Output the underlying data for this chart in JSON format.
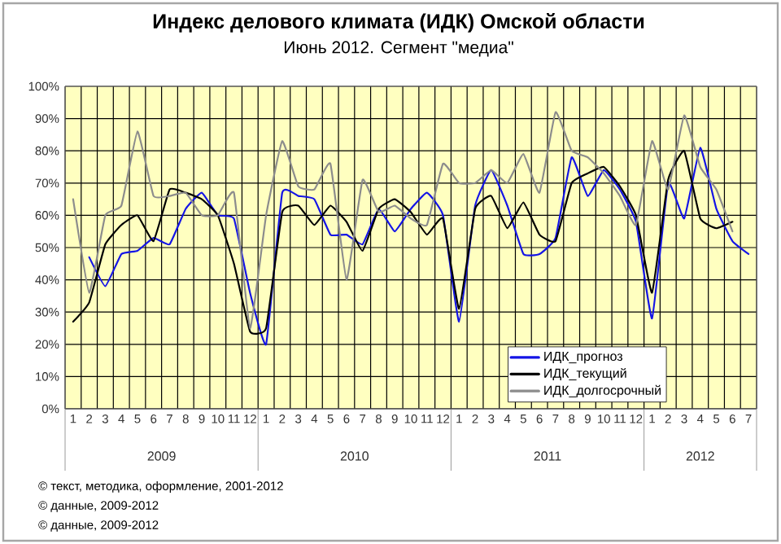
{
  "chart_data": {
    "type": "line",
    "title": "Индекс делового климата (ИДК) Омской области",
    "subtitle": "Июнь 2012. Сегмент \"медиа\"",
    "categories": [
      "1",
      "2",
      "3",
      "4",
      "5",
      "6",
      "7",
      "8",
      "9",
      "10",
      "11",
      "12",
      "1",
      "2",
      "3",
      "4",
      "5",
      "6",
      "7",
      "8",
      "9",
      "10",
      "11",
      "12",
      "1",
      "2",
      "3",
      "4",
      "5",
      "6",
      "7",
      "8",
      "9",
      "10",
      "11",
      "12",
      "1",
      "2",
      "3",
      "4",
      "5",
      "6",
      "7"
    ],
    "series": [
      {
        "name": "ИДК_прогноз",
        "color": "#1414e6",
        "values": [
          null,
          47,
          38,
          48,
          49,
          53,
          51,
          62,
          67,
          60,
          59,
          36,
          20,
          67,
          66,
          65,
          54,
          54,
          51,
          62,
          55,
          62,
          67,
          60,
          27,
          63,
          74,
          63,
          48,
          48,
          53,
          78,
          66,
          74,
          68,
          58,
          28,
          70,
          59,
          81,
          62,
          52,
          48
        ]
      },
      {
        "name": "ИДК_текущий",
        "color": "#000000",
        "values": [
          27,
          33,
          51,
          57,
          60,
          52,
          68,
          67,
          65,
          60,
          45,
          24,
          25,
          61,
          63,
          57,
          63,
          58,
          49,
          62,
          65,
          61,
          54,
          59,
          31,
          62,
          66,
          56,
          64,
          54,
          52,
          70,
          73,
          75,
          69,
          60,
          36,
          71,
          80,
          59,
          56,
          58,
          null
        ]
      },
      {
        "name": "ИДК_долгосрочный",
        "color": "#8c8c8c",
        "values": [
          65,
          36,
          60,
          63,
          86,
          66,
          66,
          67,
          60,
          60,
          67,
          25,
          60,
          83,
          69,
          68,
          76,
          40,
          71,
          61,
          63,
          59,
          57,
          76,
          70,
          70,
          74,
          70,
          79,
          67,
          92,
          80,
          78,
          73,
          66,
          57,
          83,
          68,
          91,
          75,
          68,
          55,
          null
        ]
      }
    ],
    "ylim": [
      0,
      100
    ],
    "yticks": [
      {
        "value": 0,
        "label": "0%"
      },
      {
        "value": 10,
        "label": "10%"
      },
      {
        "value": 20,
        "label": "20%"
      },
      {
        "value": 30,
        "label": "30%"
      },
      {
        "value": 40,
        "label": "40%"
      },
      {
        "value": 50,
        "label": "50%"
      },
      {
        "value": 60,
        "label": "60%"
      },
      {
        "value": 70,
        "label": "70%"
      },
      {
        "value": 80,
        "label": "80%"
      },
      {
        "value": 90,
        "label": "90%"
      },
      {
        "value": 100,
        "label": "100%"
      }
    ],
    "grid": true,
    "legend": "bottom right",
    "marker": "none",
    "line_style": "solid",
    "annotations": [
      "2009",
      "2010",
      "2011",
      "2012",
      "© текст, методика, оформление, 2001-2012",
      "© данные, 2009-2012",
      "© данные, 2009-2012"
    ]
  }
}
